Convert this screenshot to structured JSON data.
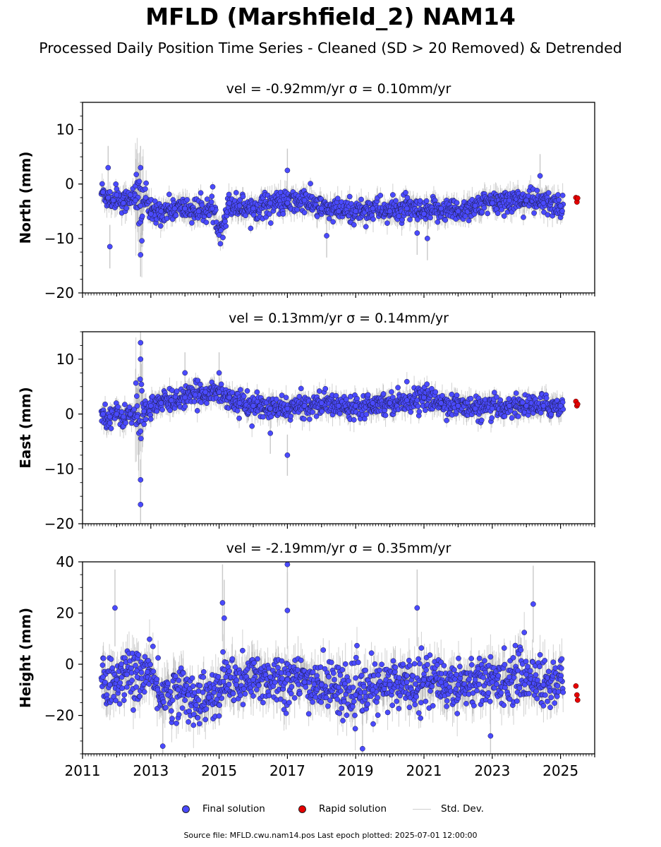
{
  "title": "MFLD (Marshfield_2) NAM14",
  "subtitle": "Processed Daily Position Time Series - Cleaned (SD > 20 Removed) & Detrended",
  "footer": "Source file: MFLD.cwu.nam14.pos  Last epoch plotted: 2025-07-01 12:00:00",
  "legend": {
    "final": "Final solution",
    "rapid": "Rapid solution",
    "std": "Std. Dev."
  },
  "colors": {
    "final": "#4a4aff",
    "rapid": "#e60000",
    "std": "#c8c8c8"
  },
  "chart_data": [
    {
      "type": "scatter",
      "ylabel": "North (mm)",
      "title": "vel = -0.92mm/yr   σ = 0.10mm/yr",
      "xlim": [
        2011,
        2026
      ],
      "ylim": [
        -20,
        15
      ],
      "yticks": [
        10,
        0,
        -10,
        -20
      ],
      "xticks": [
        "2011",
        "2013",
        "2015",
        "2017",
        "2019",
        "2021",
        "2023",
        "2025"
      ],
      "series": [
        {
          "name": "Final solution",
          "x": [
            2011.6,
            2011.75,
            2011.9,
            2012.0,
            2012.2,
            2012.4,
            2012.55,
            2012.7,
            2012.85,
            2013.0,
            2013.3,
            2013.7,
            2014.0,
            2014.4,
            2014.8,
            2015.05,
            2015.3,
            2015.6,
            2016.0,
            2016.5,
            2017.0,
            2017.5,
            2018.0,
            2018.5,
            2019.0,
            2019.5,
            2020.0,
            2020.5,
            2021.0,
            2021.5,
            2022.0,
            2022.5,
            2023.0,
            2023.5,
            2024.0,
            2024.5,
            2025.0,
            2011.75,
            2011.8,
            2012.7,
            2012.7,
            2017.0,
            2024.4,
            2020.8,
            2021.1,
            2018.15
          ],
          "y": [
            -1.5,
            -2.5,
            -3.0,
            -2.0,
            -3.5,
            -2.0,
            -3.0,
            -4.0,
            -2.5,
            -5.5,
            -5.0,
            -4.5,
            -4.5,
            -5.0,
            -4.5,
            -8.5,
            -3.5,
            -4.0,
            -4.5,
            -3.5,
            -3.5,
            -3.0,
            -4.5,
            -5.0,
            -5.0,
            -4.5,
            -5.0,
            -4.5,
            -5.5,
            -4.5,
            -5.0,
            -4.0,
            -3.5,
            -3.0,
            -3.0,
            -3.5,
            -4.0,
            3.0,
            -11.5,
            3.0,
            -13.0,
            2.5,
            1.5,
            -9.0,
            -10.0,
            -9.5
          ],
          "note": ""
        },
        {
          "name": "Rapid solution",
          "x": [
            2025.45,
            2025.48,
            2025.5
          ],
          "y": [
            -2.5,
            -3.3,
            -2.6
          ]
        }
      ]
    },
    {
      "type": "scatter",
      "ylabel": "East (mm)",
      "title": "vel = 0.13mm/yr   σ = 0.14mm/yr",
      "xlim": [
        2011,
        2026
      ],
      "ylim": [
        -20,
        15
      ],
      "yticks": [
        10,
        0,
        -10,
        -20
      ],
      "xticks": [
        "2011",
        "2013",
        "2015",
        "2017",
        "2019",
        "2021",
        "2023",
        "2025"
      ],
      "series": [
        {
          "name": "Final solution",
          "x": [
            2011.6,
            2011.8,
            2012.0,
            2012.2,
            2012.4,
            2012.6,
            2012.8,
            2013.0,
            2013.3,
            2013.6,
            2014.0,
            2014.3,
            2014.6,
            2015.0,
            2015.3,
            2015.6,
            2016.0,
            2016.5,
            2017.0,
            2017.5,
            2018.0,
            2018.5,
            2019.0,
            2019.5,
            2020.0,
            2020.5,
            2021.0,
            2021.5,
            2022.0,
            2022.5,
            2023.0,
            2023.5,
            2024.0,
            2024.5,
            2025.0,
            2012.7,
            2012.7,
            2012.7,
            2012.7,
            2017.0,
            2016.5,
            2014.0,
            2015.0
          ],
          "y": [
            0.0,
            -0.5,
            0.0,
            -0.5,
            0.0,
            -0.5,
            0.5,
            1.5,
            2.0,
            2.5,
            3.0,
            3.5,
            4.0,
            4.0,
            3.0,
            2.0,
            1.5,
            1.0,
            1.0,
            1.5,
            2.0,
            1.5,
            1.5,
            2.0,
            2.0,
            2.5,
            3.0,
            2.0,
            1.5,
            1.0,
            1.0,
            1.5,
            1.5,
            1.5,
            1.5,
            13.0,
            10.0,
            -12.0,
            -16.5,
            -7.5,
            -3.5,
            7.5,
            7.5
          ]
        },
        {
          "name": "Rapid solution",
          "x": [
            2025.45,
            2025.48,
            2025.5
          ],
          "y": [
            2.3,
            1.5,
            1.8
          ]
        }
      ]
    },
    {
      "type": "scatter",
      "ylabel": "Height (mm)",
      "title": "vel = -2.19mm/yr   σ = 0.35mm/yr",
      "xlim": [
        2011,
        2026
      ],
      "ylim": [
        -35,
        40
      ],
      "yticks": [
        40,
        20,
        0,
        -20
      ],
      "xticks": [
        "2011",
        "2013",
        "2015",
        "2017",
        "2019",
        "2021",
        "2023",
        "2025"
      ],
      "series": [
        {
          "name": "Final solution",
          "x": [
            2011.6,
            2011.8,
            2012.0,
            2012.3,
            2012.6,
            2012.9,
            2013.2,
            2013.5,
            2013.8,
            2014.1,
            2014.4,
            2014.7,
            2015.0,
            2015.2,
            2015.5,
            2016.0,
            2016.5,
            2017.0,
            2017.5,
            2018.0,
            2018.5,
            2019.0,
            2019.5,
            2020.0,
            2020.5,
            2021.0,
            2021.5,
            2022.0,
            2022.5,
            2023.0,
            2023.5,
            2024.0,
            2024.5,
            2025.0,
            2011.95,
            2015.1,
            2015.15,
            2017.0,
            2017.0,
            2020.8,
            2024.2,
            2013.35,
            2019.2,
            2022.95
          ],
          "y": [
            -5,
            -8,
            -6,
            -4,
            -5,
            -3,
            -10,
            -12,
            -10,
            -12,
            -14,
            -13,
            -12,
            -5,
            -8,
            -6,
            -5,
            -6,
            -7,
            -8,
            -9,
            -12,
            -10,
            -8,
            -7,
            -6,
            -7,
            -8,
            -6,
            -7,
            -5,
            -4,
            -8,
            -6,
            22,
            24,
            18,
            39,
            21,
            22,
            23.5,
            -32,
            -33,
            -28
          ]
        },
        {
          "name": "Rapid solution",
          "x": [
            2025.45,
            2025.48,
            2025.5
          ],
          "y": [
            -8.5,
            -12,
            -14
          ]
        }
      ]
    }
  ]
}
